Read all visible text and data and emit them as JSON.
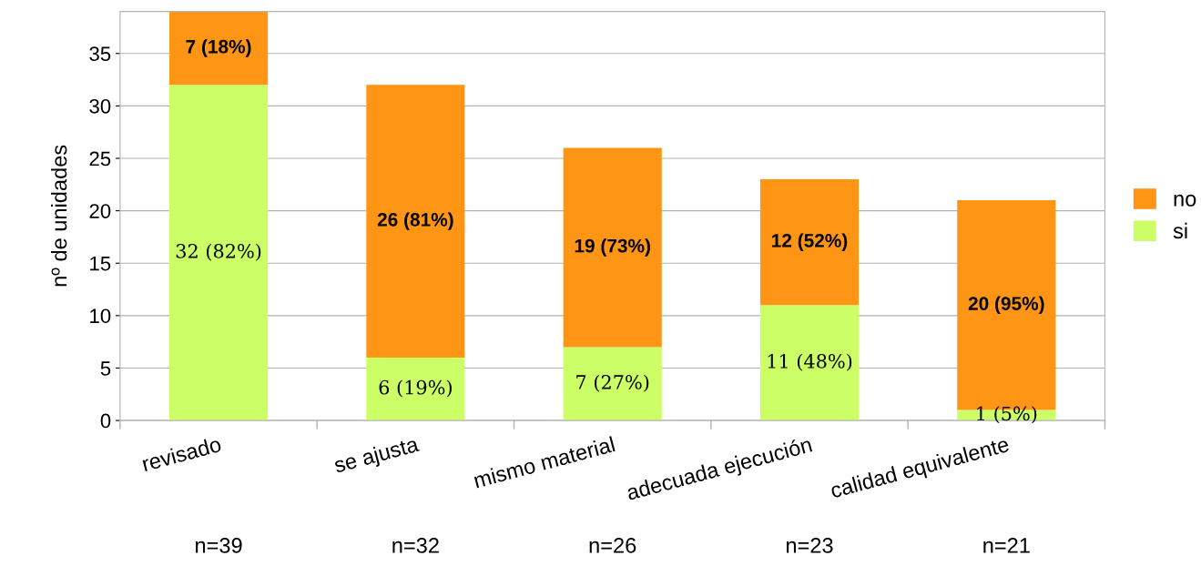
{
  "chart_data": {
    "type": "bar",
    "stacked": true,
    "ylabel": "nº de unidades",
    "categories": [
      "revisado",
      "se ajusta",
      "mismo material",
      "adecuada ejecución",
      "calidad equivalente"
    ],
    "series": [
      {
        "name": "si",
        "color": "#ccff66",
        "values": [
          32,
          6,
          7,
          11,
          1
        ],
        "value_labels": [
          "32 (82%)",
          "6 (19%)",
          "7 (27%)",
          "11 (48%)",
          "1 (5%)"
        ]
      },
      {
        "name": "no",
        "color": "#ff9514",
        "values": [
          7,
          26,
          19,
          12,
          20
        ],
        "value_labels": [
          "7 (18%)",
          "26 (81%)",
          "19 (73%)",
          "12 (52%)",
          "20 (95%)"
        ]
      }
    ],
    "ylim": [
      0,
      39
    ],
    "yticks": [
      0,
      5,
      10,
      15,
      20,
      25,
      30,
      35
    ],
    "grid": "y",
    "legend": "right",
    "annotations": [
      "n=39",
      "n=32",
      "n=26",
      "n=23",
      "n=21"
    ]
  }
}
